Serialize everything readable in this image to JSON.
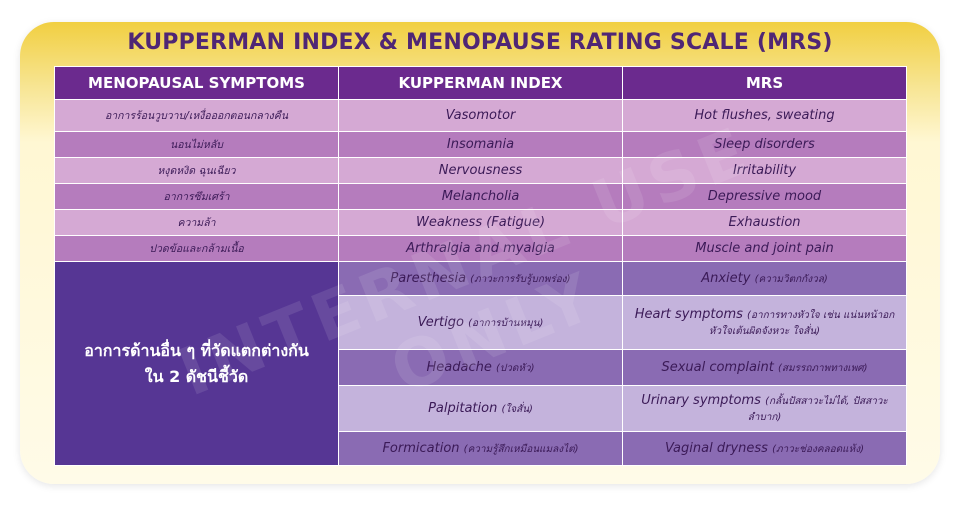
{
  "title": "KUPPERMAN INDEX & MENOPAUSE RATING SCALE (MRS)",
  "headers": [
    "MENOPAUSAL SYMPTOMS",
    "KUPPERMAN INDEX",
    "MRS"
  ],
  "rows": [
    {
      "th": "อาการร้อนวูบวาบ/เหงื่อออกตอนกลางคืน",
      "kupperman": "Vasomotor",
      "mrs": "Hot flushes, sweating"
    },
    {
      "th": "นอนไม่หลับ",
      "kupperman": "Insomania",
      "mrs": "Sleep disorders"
    },
    {
      "th": "หงุดหงิด ฉุนเฉียว",
      "kupperman": "Nervousness",
      "mrs": "Irritability"
    },
    {
      "th": "อาการซึมเศร้า",
      "kupperman": "Melancholia",
      "mrs": "Depressive mood"
    },
    {
      "th": "ความล้า",
      "kupperman": "Weakness (Fatigue)",
      "mrs": "Exhaustion"
    },
    {
      "th": "ปวดข้อและกล้ามเนื้อ",
      "kupperman": "Arthralgia and myalgia",
      "mrs": "Muscle and joint pain"
    }
  ],
  "merged_label_line1": "อาการด้านอื่น ๆ ที่วัดแตกต่างกัน",
  "merged_label_line2": "ใน 2 ดัชนีชี้วัด",
  "other_rows": [
    {
      "k_en": "Paresthesia",
      "k_th": "(ภาวะการรับรู้บกพร่อง)",
      "m_en": "Anxiety",
      "m_th": "(ความวิตกกังวล)"
    },
    {
      "k_en": "Vertigo",
      "k_th": "(อาการบ้านหมุน)",
      "m_en": "Heart symptoms",
      "m_th": "(อาการทางหัวใจ เช่น แน่นหน้าอก หัวใจเต้นผิดจังหวะ ใจสั่น)"
    },
    {
      "k_en": "Headache",
      "k_th": "(ปวดหัว)",
      "m_en": "Sexual complaint",
      "m_th": "(สมรรถภาพทางเพศ)"
    },
    {
      "k_en": "Palpitation",
      "k_th": "(ใจสั่น)",
      "m_en": "Urinary symptoms",
      "m_th": "(กลั้นปัสสาวะไม่ได้, ปัสสาวะลำบาก)"
    },
    {
      "k_en": "Formication",
      "k_th": "(ความรู้สึกเหมือนแมลงไต่)",
      "m_en": "Vaginal dryness",
      "m_th": "(ภาวะช่องคลอดแห้ง)"
    }
  ],
  "watermark": "INTERNAL USE ONLY",
  "colors": {
    "header": "#6b2a8e",
    "merged": "#563694",
    "title": "#4f2675"
  }
}
